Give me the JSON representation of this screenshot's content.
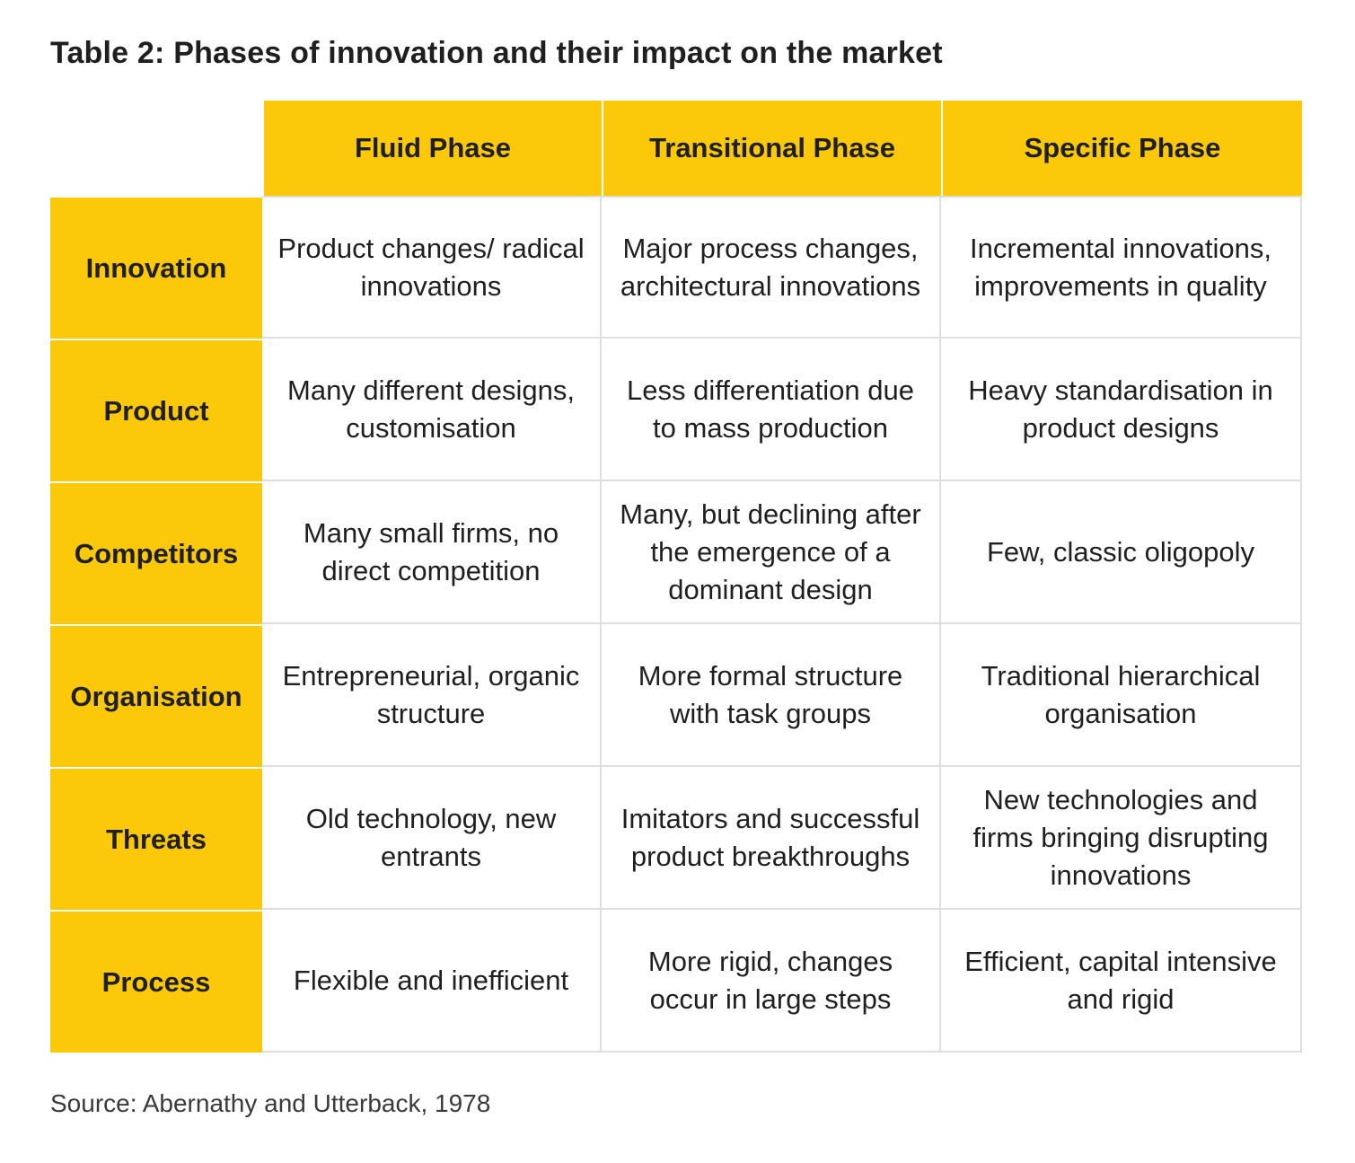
{
  "title": "Table 2: Phases of innovation and their impact on the market",
  "table": {
    "columns": [
      "Fluid Phase",
      "Transitional Phase",
      "Specific Phase"
    ],
    "rows": [
      {
        "label": "Innovation",
        "cells": [
          "Product changes/ radical innovations",
          "Major process changes, architectural innovations",
          "Incremental innovations, improvements in quality"
        ]
      },
      {
        "label": "Product",
        "cells": [
          "Many different designs, customisation",
          "Less differentiation due to mass production",
          "Heavy standardisation in product designs"
        ]
      },
      {
        "label": "Competitors",
        "cells": [
          "Many small firms, no direct competition",
          "Many, but declining after the emergence of a dominant design",
          "Few, classic oligopoly"
        ]
      },
      {
        "label": "Organisation",
        "cells": [
          "Entrepreneurial, organic structure",
          "More formal structure with task groups",
          "Traditional hierarchical organisation"
        ]
      },
      {
        "label": "Threats",
        "cells": [
          "Old technology, new entrants",
          "Imitators and successful product breakthroughs",
          "New technologies and firms bringing disrupting innovations"
        ]
      },
      {
        "label": "Process",
        "cells": [
          "Flexible and inefficient",
          "More rigid, changes occur in large steps",
          "Efficient, capital intensive and rigid"
        ]
      }
    ]
  },
  "source": "Source: Abernathy and Utterback, 1978",
  "colors": {
    "header_fill": "#fbc909",
    "grid_line": "#dedede"
  }
}
